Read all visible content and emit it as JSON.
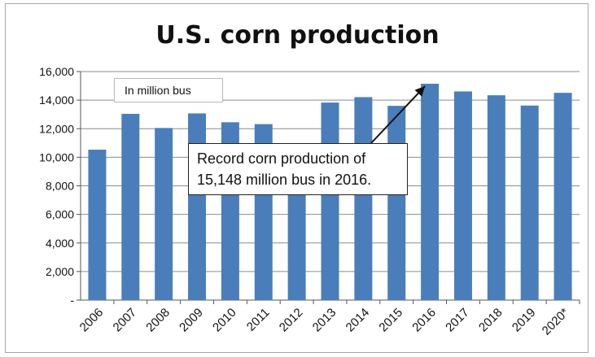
{
  "chart_data": {
    "type": "bar",
    "title": "U.S. corn production",
    "unit_label": "In million bus",
    "categories": [
      "2006",
      "2007",
      "2008",
      "2009",
      "2010",
      "2011",
      "2012",
      "2013",
      "2014",
      "2015",
      "2016",
      "2017",
      "2018",
      "2019",
      "2020*"
    ],
    "values": [
      10530,
      13040,
      12050,
      13070,
      12450,
      12320,
      10780,
      13830,
      14210,
      13600,
      15148,
      14610,
      14340,
      13620,
      14510
    ],
    "ylim": [
      0,
      16000
    ],
    "yticks": [
      0,
      2000,
      4000,
      6000,
      8000,
      10000,
      12000,
      14000,
      16000
    ],
    "ytick_labels": [
      "-",
      "2,000",
      "4,000",
      "6,000",
      "8,000",
      "10,000",
      "12,000",
      "14,000",
      "16,000"
    ],
    "grid": true,
    "bar_color": "#4a7ebb",
    "annotation": {
      "line1": "Record corn production of",
      "line2": "15,148 million bus in 2016.",
      "target_category": "2016"
    }
  }
}
